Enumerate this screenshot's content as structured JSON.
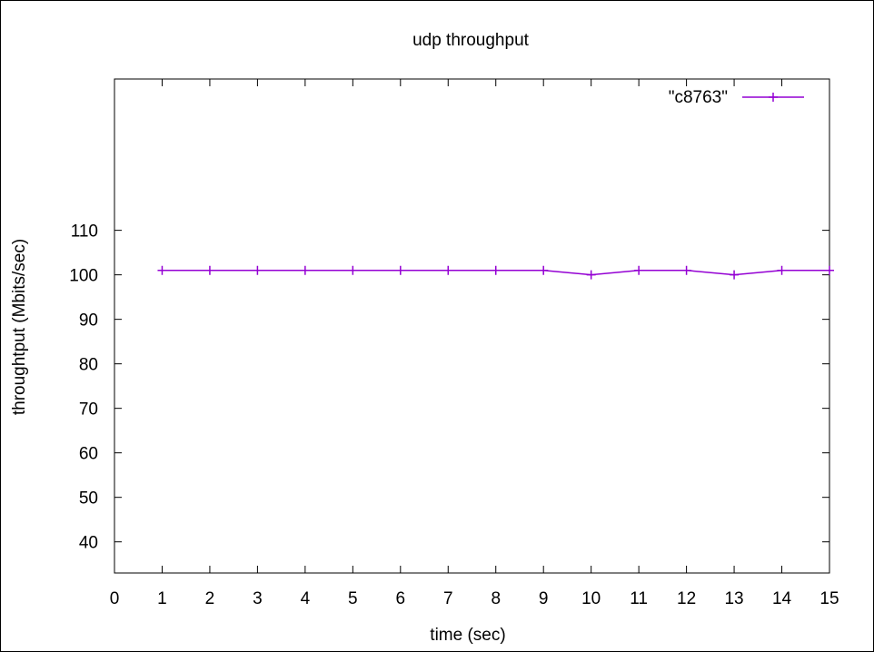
{
  "chart_data": {
    "type": "line",
    "title": "udp throughput",
    "xlabel": "time (sec)",
    "ylabel": "throughtput (Mbits/sec)",
    "xlim": [
      0,
      15
    ],
    "ylim": [
      33,
      144
    ],
    "xticks": [
      0,
      1,
      2,
      3,
      4,
      5,
      6,
      7,
      8,
      9,
      10,
      11,
      12,
      13,
      14,
      15
    ],
    "yticks": [
      40,
      50,
      60,
      70,
      80,
      90,
      100,
      110
    ],
    "grid": false,
    "legend_position": "top-right",
    "series": [
      {
        "name": "\"c8763\"",
        "color": "#9400d3",
        "marker": "plus",
        "x": [
          1,
          2,
          3,
          4,
          5,
          6,
          7,
          8,
          9,
          10,
          11,
          12,
          13,
          14,
          15
        ],
        "y": [
          101,
          101,
          101,
          101,
          101,
          101,
          101,
          101,
          101,
          100,
          101,
          101,
          100,
          101,
          101
        ]
      }
    ]
  }
}
